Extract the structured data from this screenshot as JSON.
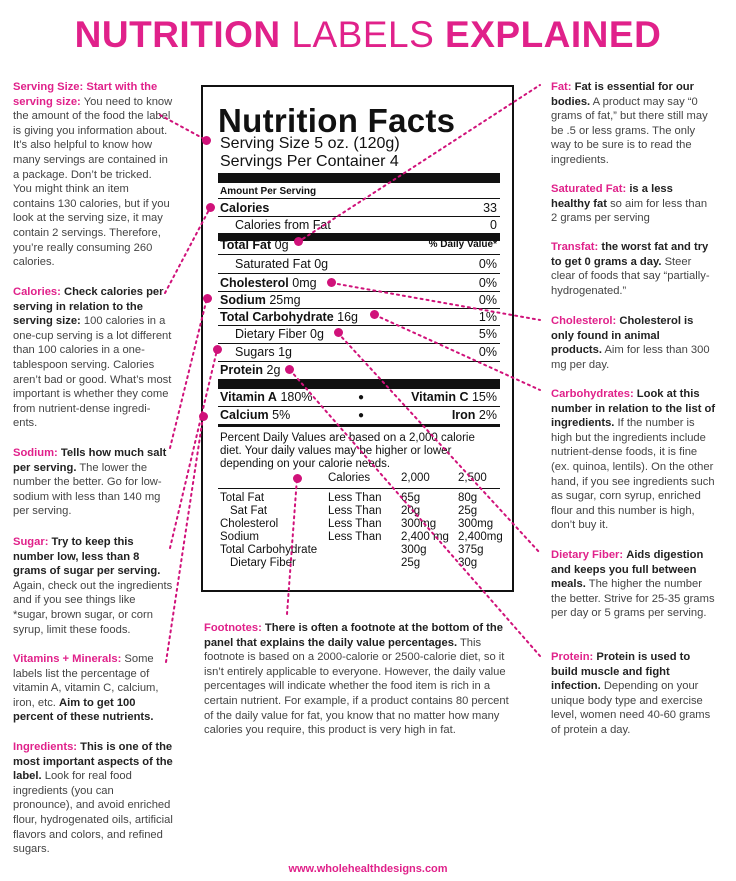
{
  "title": {
    "part1": "NUTRITION",
    "part2": "LABELS",
    "part3": "EXPLAINED"
  },
  "footer": "www.wholehealthdesigns.com",
  "label": {
    "heading": "Nutrition Facts",
    "serving_size": "Serving Size 5 oz. (120g)",
    "servings_per_container": "Servings Per Container 4",
    "amount_per_serving": "Amount Per Serving",
    "calories_label": "Calories",
    "calories_value": "33",
    "calories_fat_label": "Calories from Fat",
    "calories_fat_value": "0",
    "daily_value_header": "% Daily Value*",
    "rows": [
      {
        "label": "Total Fat",
        "amount": "0g",
        "pct": "0%",
        "bold": true
      },
      {
        "label": "Saturated Fat",
        "amount": "0g",
        "pct": "0%",
        "bold": false
      },
      {
        "label": "Cholesterol",
        "amount": "0mg",
        "pct": "0%",
        "bold": true
      },
      {
        "label": "Sodium",
        "amount": "25mg",
        "pct": "0%",
        "bold": true
      },
      {
        "label": "Total Carbohydrate",
        "amount": "16g",
        "pct": "1%",
        "bold": true
      },
      {
        "label": "Dietary Fiber",
        "amount": "0g",
        "pct": "5%",
        "bold": false
      },
      {
        "label": "Sugars",
        "amount": "1g",
        "pct": "0%",
        "bold": false
      },
      {
        "label": "Protein",
        "amount": "2g",
        "pct": "",
        "bold": true
      }
    ],
    "vitamin_a": "Vitamin A",
    "vitamin_a_pct": "180%",
    "vitamin_c": "Vitamin C",
    "vitamin_c_pct": "15%",
    "calcium": "Calcium",
    "calcium_pct": "5%",
    "iron": "Iron",
    "iron_pct": "2%",
    "bullet": "●",
    "footnote_text_1": "Percent Daily Values are based on a 2,000 calorie",
    "footnote_text_2": "diet. Your daily values may be higher or lower",
    "footnote_text_3": "depending on your calorie needs.",
    "ft_calories": "Calories",
    "ft_2000": "2,000",
    "ft_2500": "2,500",
    "ft_rows": [
      {
        "name": "Total Fat",
        "cond": "Less Than",
        "a": "65g",
        "b": "80g"
      },
      {
        "name": "Sat Fat",
        "cond": "Less Than",
        "a": "20g",
        "b": "25g"
      },
      {
        "name": "Cholesterol",
        "cond": "Less Than",
        "a": "300mg",
        "b": "300mg"
      },
      {
        "name": "Sodium",
        "cond": "Less Than",
        "a": "2,400 mg",
        "b": "2,400mg"
      },
      {
        "name": "Total Carbohydrate",
        "cond": "",
        "a": "300g",
        "b": "375g"
      },
      {
        "name": "Dietary Fiber",
        "cond": "",
        "a": "25g",
        "b": "30g"
      }
    ]
  },
  "notes": {
    "serving": {
      "head": "Serving Size: Start with the serving size:",
      "body": "You need to know the amount of the food the label is giving you information about. It’s also helpful to know how many servings are contained in a package. Don’t be tricked. You might think an item contains 130 calories, but if you look at the serving size, it may contain 2 servings. Therefore, you’re really consuming 260 calories."
    },
    "calories": {
      "head": "Calories:",
      "em": "Check calories per serving in relation to the serving size:",
      "body": "100 calories in a one-cup serving is a lot different than 100 calories in a one-tablespoon serving. Calories aren’t bad or good. What’s most important is whether they come from nutrient-dense ingredi-ents."
    },
    "sodium": {
      "head": "Sodium:",
      "em": "Tells how much salt per serving.",
      "body": "The lower the number the better. Go for low-sodium with less than 140 mg per serving."
    },
    "sugar": {
      "head": "Sugar:",
      "em": "Try to keep this number low, less than 8 grams of sugar per serving.",
      "body": "Again, check out the ingredients and if you see things like *sugar, brown sugar, or corn syrup, limit these foods."
    },
    "vitamins": {
      "head": "Vitamins + Minerals:",
      "body": "Some labels list the percentage of vitamin A, vitamin C, calcium, iron, etc.",
      "em": "Aim to get 100 percent of these nutrients."
    },
    "ingredients": {
      "head": "Ingredients:",
      "em": "This is one of the most important aspects of the label.",
      "body": "Look for real food ingredients (you can pronounce), and avoid enriched flour, hydrogenated oils, artificial flavors and colors, and refined sugars."
    },
    "footnotes": {
      "head": "Footnotes:",
      "em": "There is often a footnote at the bottom of the panel that explains the daily value percentages.",
      "body": "This footnote is based on a 2000-calorie or 2500-calorie diet, so it isn’t entirely applicable to everyone. However, the daily value percentages will indicate whether the food item is rich in a certain nutrient. For example, if a product contains 80 percent of the daily value for fat, you know that no matter how many calories you require, this product is very high in fat."
    },
    "fat": {
      "head": "Fat:",
      "em": "Fat is essential for our bodies.",
      "body": "A product may say “0 grams of fat,” but there still may be .5 or less grams. The only way to be sure is to read the ingredients."
    },
    "saturated": {
      "head": "Saturated Fat:",
      "em": "is a less healthy fat",
      "body": "so aim for less than 2 grams per serving"
    },
    "transfat": {
      "head": "Transfat:",
      "em": "the worst fat and try to get 0 grams a day.",
      "body": "Steer clear of foods that say “partially-hydrogenated.”"
    },
    "cholesterol": {
      "head": "Cholesterol:",
      "em": "Cholesterol is only found in animal products.",
      "body": "Aim for less than 300 mg per day."
    },
    "carbs": {
      "head": "Carbohydrates:",
      "em": "Look at this number in relation to the list of ingredients.",
      "body": "If the number is high but the ingredients include nutrient-dense foods, it is fine (ex. quinoa, lentils). On the other hand, if you see ingredients such as sugar, corn syrup, enriched flour and this number is high, don’t buy it."
    },
    "fiber": {
      "head": "Dietary Fiber:",
      "em": "Aids digestion and keeps you full between meals.",
      "body": "The higher the number the better. Strive for 25-35 grams per day or 5 grams per serving."
    },
    "protein": {
      "head": "Protein:",
      "em": "Protein is used to build muscle and fight infection.",
      "body": "Depending on your unique body type and exercise level, women need 40-60 grams of protein a day."
    }
  },
  "colors": {
    "accent": "#e0218a",
    "dot": "#d0127a"
  }
}
